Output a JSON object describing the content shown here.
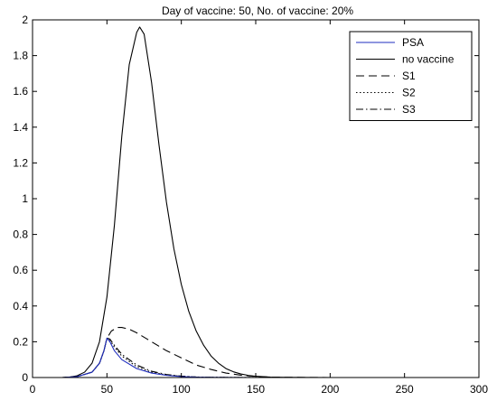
{
  "chart_data": {
    "type": "line",
    "title": "Day of vaccine: 50, No. of vaccine: 20%",
    "xlabel": "",
    "ylabel": "",
    "xlim": [
      0,
      300
    ],
    "ylim": [
      0,
      2
    ],
    "xticks": [
      0,
      50,
      100,
      150,
      200,
      250,
      300
    ],
    "yticks": [
      0,
      0.2,
      0.4,
      0.6,
      0.8,
      1,
      1.2,
      1.4,
      1.6,
      1.8,
      2
    ],
    "grid": false,
    "legend_position": "top-right",
    "series": [
      {
        "name": "PSA",
        "color": "#1f2dbf",
        "dash": "solid",
        "points": [
          [
            0,
            0
          ],
          [
            20,
            0
          ],
          [
            30,
            0.005
          ],
          [
            40,
            0.03
          ],
          [
            45,
            0.08
          ],
          [
            48,
            0.15
          ],
          [
            50,
            0.22
          ],
          [
            52,
            0.2
          ],
          [
            55,
            0.15
          ],
          [
            60,
            0.1
          ],
          [
            70,
            0.05
          ],
          [
            80,
            0.025
          ],
          [
            90,
            0.012
          ],
          [
            100,
            0.005
          ],
          [
            110,
            0.002
          ],
          [
            120,
            0.001
          ],
          [
            150,
            0
          ],
          [
            300,
            0
          ]
        ]
      },
      {
        "name": "no vaccine",
        "color": "#000000",
        "dash": "solid",
        "points": [
          [
            0,
            0
          ],
          [
            20,
            0
          ],
          [
            25,
            0.002
          ],
          [
            30,
            0.01
          ],
          [
            35,
            0.03
          ],
          [
            40,
            0.08
          ],
          [
            45,
            0.2
          ],
          [
            50,
            0.45
          ],
          [
            55,
            0.85
          ],
          [
            60,
            1.35
          ],
          [
            65,
            1.75
          ],
          [
            70,
            1.93
          ],
          [
            72,
            1.96
          ],
          [
            75,
            1.92
          ],
          [
            80,
            1.65
          ],
          [
            85,
            1.3
          ],
          [
            90,
            0.98
          ],
          [
            95,
            0.72
          ],
          [
            100,
            0.52
          ],
          [
            105,
            0.37
          ],
          [
            110,
            0.26
          ],
          [
            115,
            0.18
          ],
          [
            120,
            0.12
          ],
          [
            125,
            0.08
          ],
          [
            130,
            0.05
          ],
          [
            135,
            0.032
          ],
          [
            140,
            0.02
          ],
          [
            145,
            0.012
          ],
          [
            150,
            0.007
          ],
          [
            160,
            0.002
          ],
          [
            170,
            0.001
          ],
          [
            200,
            0
          ],
          [
            300,
            0
          ]
        ]
      },
      {
        "name": "S1",
        "color": "#000000",
        "dash": "dashed",
        "points": [
          [
            0,
            0
          ],
          [
            20,
            0
          ],
          [
            30,
            0.005
          ],
          [
            40,
            0.03
          ],
          [
            45,
            0.08
          ],
          [
            48,
            0.15
          ],
          [
            50,
            0.22
          ],
          [
            53,
            0.26
          ],
          [
            57,
            0.28
          ],
          [
            60,
            0.28
          ],
          [
            65,
            0.27
          ],
          [
            70,
            0.25
          ],
          [
            80,
            0.2
          ],
          [
            90,
            0.15
          ],
          [
            100,
            0.11
          ],
          [
            110,
            0.07
          ],
          [
            120,
            0.045
          ],
          [
            130,
            0.025
          ],
          [
            140,
            0.013
          ],
          [
            150,
            0.006
          ],
          [
            160,
            0.002
          ],
          [
            170,
            0.001
          ],
          [
            200,
            0
          ],
          [
            300,
            0
          ]
        ]
      },
      {
        "name": "S2",
        "color": "#000000",
        "dash": "dotted",
        "points": [
          [
            0,
            0
          ],
          [
            20,
            0
          ],
          [
            30,
            0.005
          ],
          [
            40,
            0.03
          ],
          [
            45,
            0.08
          ],
          [
            48,
            0.15
          ],
          [
            50,
            0.22
          ],
          [
            52,
            0.21
          ],
          [
            55,
            0.17
          ],
          [
            60,
            0.12
          ],
          [
            70,
            0.06
          ],
          [
            80,
            0.03
          ],
          [
            90,
            0.015
          ],
          [
            100,
            0.007
          ],
          [
            110,
            0.003
          ],
          [
            120,
            0.001
          ],
          [
            150,
            0
          ],
          [
            300,
            0
          ]
        ]
      },
      {
        "name": "S3",
        "color": "#000000",
        "dash": "dashdot",
        "points": [
          [
            0,
            0
          ],
          [
            20,
            0
          ],
          [
            30,
            0.005
          ],
          [
            40,
            0.03
          ],
          [
            45,
            0.08
          ],
          [
            48,
            0.15
          ],
          [
            50,
            0.22
          ],
          [
            52,
            0.215
          ],
          [
            55,
            0.18
          ],
          [
            60,
            0.13
          ],
          [
            70,
            0.07
          ],
          [
            80,
            0.035
          ],
          [
            90,
            0.017
          ],
          [
            100,
            0.008
          ],
          [
            110,
            0.003
          ],
          [
            120,
            0.001
          ],
          [
            150,
            0
          ],
          [
            300,
            0
          ]
        ]
      }
    ]
  }
}
